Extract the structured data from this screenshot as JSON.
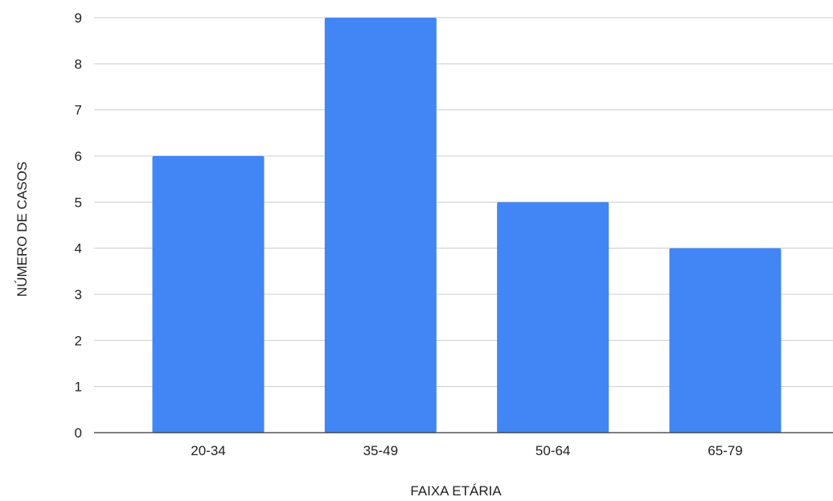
{
  "chart_data": {
    "type": "bar",
    "categories": [
      "20-34",
      "35-49",
      "50-64",
      "65-79"
    ],
    "values": [
      6,
      9,
      5,
      4
    ],
    "xlabel": "FAIXA ETÁRIA",
    "ylabel": "NÚMERO DE CASOS",
    "ylim": [
      0,
      9
    ],
    "yticks": [
      "0",
      "1",
      "2",
      "3",
      "4",
      "5",
      "6",
      "7",
      "8",
      "9"
    ],
    "grid": true,
    "legend": "none",
    "bar_color": "#4285F4"
  }
}
